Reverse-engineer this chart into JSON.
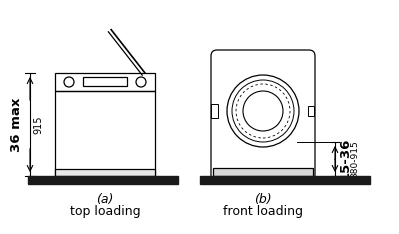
{
  "bg_color": "#ffffff",
  "line_color": "#000000",
  "floor_color": "#1a1a1a",
  "fig_label_a": "(a)",
  "fig_label_b": "(b)",
  "caption_a": "top loading",
  "caption_b": "front loading",
  "dim_label_a_large": "36 max",
  "dim_label_a_small": "915",
  "dim_label_b_large": "15-36",
  "dim_label_b_small": "380-915"
}
